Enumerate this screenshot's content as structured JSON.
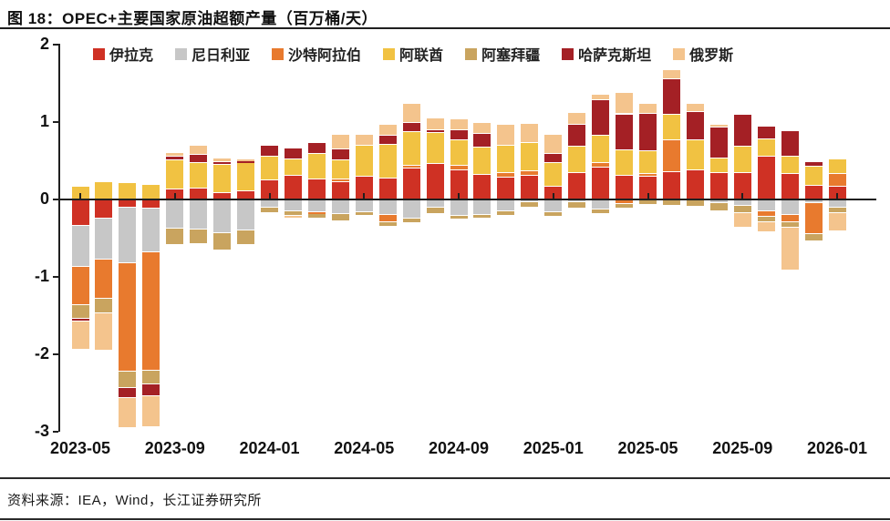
{
  "figure": {
    "title": "图 18：OPEC+主要国家原油超额产量（百万桶/天）",
    "source": "资料来源：IEA，Wind，长江证券研究所"
  },
  "chart_data": {
    "type": "bar",
    "stacked": true,
    "title": "OPEC+主要国家原油超额产量",
    "ylabel": "百万桶/天",
    "ylim": [
      -3,
      2
    ],
    "yticks": [
      2,
      1,
      0,
      -1,
      -2,
      -3
    ],
    "grid": false,
    "legend_position": "top",
    "x": [
      "2023-05",
      "2023-06",
      "2023-07",
      "2023-08",
      "2023-09",
      "2023-10",
      "2023-11",
      "2023-12",
      "2024-01",
      "2024-02",
      "2024-03",
      "2024-04",
      "2024-05",
      "2024-06",
      "2024-07",
      "2024-08",
      "2024-09",
      "2024-10",
      "2024-11",
      "2024-12",
      "2025-01",
      "2025-02",
      "2025-03",
      "2025-04",
      "2025-05",
      "2025-06",
      "2025-07",
      "2025-08",
      "2025-09",
      "2025-10",
      "2025-11",
      "2025-12",
      "2026-01"
    ],
    "xticks": [
      "2023-05",
      "2023-09",
      "2024-01",
      "2024-05",
      "2024-09",
      "2025-01",
      "2025-05",
      "2025-09",
      "2026-01"
    ],
    "series": [
      {
        "name": "伊拉克",
        "color": "#cf3124",
        "values": [
          -0.34,
          -0.25,
          -0.11,
          -0.12,
          0.13,
          0.14,
          0.08,
          0.11,
          0.25,
          0.31,
          0.26,
          0.22,
          0.29,
          0.27,
          0.4,
          0.46,
          0.38,
          0.32,
          0.28,
          0.31,
          0.16,
          0.34,
          0.41,
          0.31,
          0.29,
          0.35,
          0.38,
          0.34,
          0.34,
          0.55,
          0.33,
          0.18,
          0.16
        ]
      },
      {
        "name": "尼日利亚",
        "color": "#c7c7c7",
        "values": [
          -0.53,
          -0.53,
          -0.71,
          -0.56,
          -0.38,
          -0.39,
          -0.44,
          -0.4,
          -0.11,
          -0.15,
          -0.16,
          -0.19,
          -0.16,
          -0.2,
          -0.25,
          -0.1,
          -0.21,
          -0.2,
          -0.15,
          -0.04,
          -0.16,
          -0.04,
          -0.13,
          0,
          0,
          0,
          0,
          -0.05,
          -0.08,
          -0.15,
          -0.2,
          -0.05,
          -0.1
        ]
      },
      {
        "name": "沙特阿拉伯",
        "color": "#e87a2e",
        "values": [
          -0.5,
          -0.5,
          -1.4,
          -1.53,
          0,
          0,
          0,
          0,
          0,
          0,
          -0.03,
          0.04,
          0,
          -0.09,
          0.04,
          0,
          0.06,
          0,
          0.06,
          0.06,
          0,
          0,
          0.06,
          -0.06,
          0.04,
          0.41,
          0,
          0,
          0,
          -0.07,
          -0.09,
          -0.4,
          0.17
        ]
      },
      {
        "name": "阿联酋",
        "color": "#f1c242",
        "values": [
          0.16,
          0.22,
          0.21,
          0.19,
          0.38,
          0.33,
          0.37,
          0.36,
          0.3,
          0.21,
          0.33,
          0.25,
          0.4,
          0.44,
          0.43,
          0.4,
          0.33,
          0.35,
          0.35,
          0.36,
          0.31,
          0.34,
          0.35,
          0.33,
          0.29,
          0.33,
          0.39,
          0.19,
          0.34,
          0.23,
          0.22,
          0.24,
          0.19
        ]
      },
      {
        "name": "阿塞拜疆",
        "color": "#c9a45f",
        "values": [
          -0.17,
          -0.19,
          -0.21,
          -0.18,
          -0.21,
          -0.19,
          -0.22,
          -0.19,
          -0.07,
          -0.06,
          -0.06,
          -0.09,
          -0.05,
          -0.06,
          -0.06,
          -0.09,
          -0.05,
          -0.05,
          -0.06,
          -0.07,
          -0.06,
          -0.08,
          -0.06,
          -0.06,
          -0.07,
          -0.08,
          -0.09,
          -0.1,
          -0.1,
          -0.07,
          -0.08,
          -0.09,
          -0.08
        ]
      },
      {
        "name": "哈萨克斯坦",
        "color": "#a42025",
        "values": [
          -0.04,
          0,
          -0.14,
          -0.15,
          0.04,
          0.11,
          0.03,
          0.02,
          0.15,
          0.14,
          0.14,
          0.14,
          0,
          0.11,
          0.12,
          0.04,
          0.12,
          0.18,
          0,
          0,
          0.12,
          0.29,
          0.46,
          0.46,
          0.49,
          0.46,
          0.36,
          0.4,
          0.41,
          0.16,
          0.33,
          0.06,
          0
        ]
      },
      {
        "name": "俄罗斯",
        "color": "#f4c48d",
        "values": [
          -0.36,
          -0.48,
          -0.38,
          -0.4,
          0.05,
          0.12,
          0.05,
          0.03,
          0,
          -0.04,
          0,
          0.18,
          0.15,
          0.15,
          0.24,
          0.15,
          0.14,
          0.14,
          0.27,
          0.25,
          0.25,
          0.15,
          0.07,
          0.28,
          0.13,
          0.12,
          0.11,
          0.04,
          -0.18,
          -0.13,
          -0.55,
          0,
          -0.23
        ]
      }
    ]
  }
}
